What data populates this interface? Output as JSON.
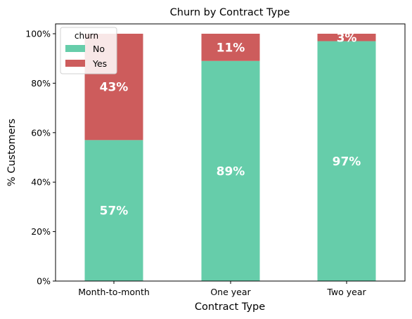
{
  "chart_data": {
    "type": "bar",
    "stacked": true,
    "title": "Churn by Contract Type",
    "xlabel": "Contract Type",
    "ylabel": "% Customers",
    "categories": [
      "Month-to-month",
      "One year",
      "Two year"
    ],
    "ylim": [
      0,
      100
    ],
    "yticks": [
      "0%",
      "20%",
      "40%",
      "60%",
      "80%",
      "100%"
    ],
    "series": [
      {
        "name": "No",
        "color": "#66cdaa",
        "values": [
          57,
          89,
          97
        ],
        "labels": [
          "57%",
          "89%",
          "97%"
        ]
      },
      {
        "name": "Yes",
        "color": "#cd5c5c",
        "values": [
          43,
          11,
          3
        ],
        "labels": [
          "43%",
          "11%",
          "3%"
        ]
      }
    ],
    "legend": {
      "title": "churn",
      "placement": "top-left"
    },
    "grid": false
  }
}
